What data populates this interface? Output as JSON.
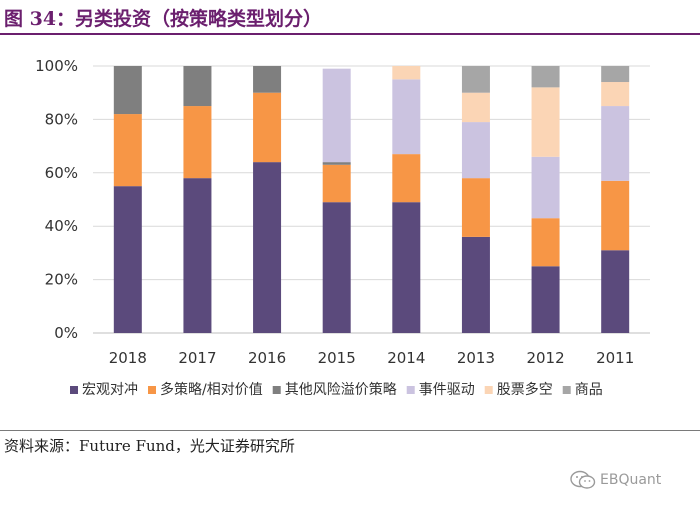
{
  "header": {
    "title": "图 34：另类投资（按策略类型划分）"
  },
  "source": "资料来源：Future Fund，光大证券研究所",
  "watermark": "EBQuant",
  "chart_data": {
    "type": "bar",
    "stacked": true,
    "categories": [
      "2018",
      "2017",
      "2016",
      "2015",
      "2014",
      "2013",
      "2012",
      "2011"
    ],
    "ylim": [
      0,
      100
    ],
    "yticks": [
      "0%",
      "20%",
      "40%",
      "60%",
      "80%",
      "100%"
    ],
    "grid": true,
    "legend_position": "bottom",
    "series": [
      {
        "name": "宏观对冲",
        "color": "#5b4a7c",
        "values": [
          55,
          58,
          64,
          49,
          49,
          36,
          25,
          31
        ]
      },
      {
        "name": "多策略/相对价值",
        "color": "#f79646",
        "values": [
          27,
          27,
          26,
          14,
          18,
          22,
          18,
          26
        ]
      },
      {
        "name": "其他风险溢价策略",
        "color": "#7f7f7f",
        "values": [
          18,
          15,
          10,
          1,
          0,
          0,
          0,
          0
        ]
      },
      {
        "name": "事件驱动",
        "color": "#cbc3e0",
        "values": [
          0,
          0,
          0,
          35,
          28,
          21,
          23,
          28
        ]
      },
      {
        "name": "股票多空",
        "color": "#fbd5b5",
        "values": [
          0,
          0,
          0,
          0,
          5,
          11,
          26,
          9
        ]
      },
      {
        "name": "商品",
        "color": "#a6a6a6",
        "values": [
          0,
          0,
          0,
          0,
          0,
          10,
          8,
          6
        ]
      }
    ]
  }
}
